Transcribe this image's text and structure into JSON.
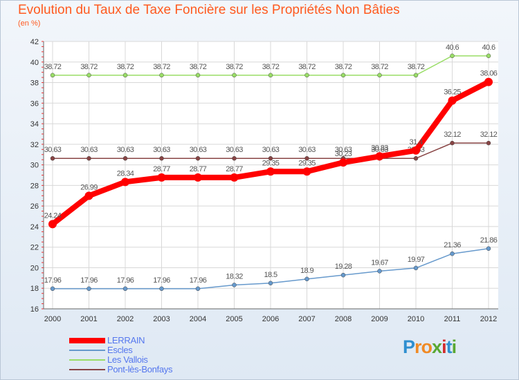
{
  "title": "Evolution du Taux de Taxe Foncière sur les Propriétés Non Bâties",
  "subtitle": "(en %)",
  "logo": {
    "letters": [
      "P",
      "r",
      "o",
      "x",
      "i",
      "t",
      "i"
    ],
    "colors": [
      "#2f8fd0",
      "#f08a24",
      "#f08a24",
      "#5aa832",
      "#d22d2d",
      "#2f8fd0",
      "#5aa832"
    ]
  },
  "chart_data": {
    "type": "line",
    "title": "Evolution du Taux de Taxe Foncière sur les Propriétés Non Bâties",
    "ylabel": "(en %)",
    "x": [
      "2000",
      "2001",
      "2002",
      "2003",
      "2004",
      "2005",
      "2006",
      "2007",
      "2008",
      "2009",
      "2010",
      "2011",
      "2012"
    ],
    "ylim": [
      16,
      42
    ],
    "yticks": [
      16,
      18,
      20,
      22,
      24,
      26,
      28,
      30,
      32,
      34,
      36,
      38,
      40,
      42
    ],
    "series": [
      {
        "name": "LERRAIN",
        "color": "#ff0000",
        "values": [
          24.24,
          26.99,
          28.34,
          28.77,
          28.77,
          28.77,
          29.35,
          29.35,
          30.23,
          30.83,
          31.4,
          36.25,
          38.06
        ],
        "labels": [
          "24.24",
          "26.99",
          "28.34",
          "28.77",
          "28.77",
          "28.77",
          "29.35",
          "29.35",
          "30.23",
          "30.83",
          "31.4",
          "36.25",
          "38.06"
        ]
      },
      {
        "name": "Escles",
        "color": "#6699cc",
        "values": [
          17.96,
          17.96,
          17.96,
          17.96,
          17.96,
          18.32,
          18.5,
          18.9,
          19.28,
          19.67,
          19.97,
          21.36,
          21.86
        ],
        "labels": [
          "17.96",
          "17.96",
          "17.96",
          "17.96",
          "17.96",
          "18.32",
          "18.5",
          "18.9",
          "19.28",
          "19.67",
          "19.97",
          "21.36",
          "21.86"
        ]
      },
      {
        "name": "Les Vallois",
        "color": "#99dd66",
        "values": [
          38.72,
          38.72,
          38.72,
          38.72,
          38.72,
          38.72,
          38.72,
          38.72,
          38.72,
          38.72,
          38.72,
          40.6,
          40.6
        ],
        "labels": [
          "38.72",
          "38.72",
          "38.72",
          "38.72",
          "38.72",
          "38.72",
          "38.72",
          "38.72",
          "38.72",
          "38.72",
          "38.72",
          "40.6",
          "40.6"
        ]
      },
      {
        "name": "Pont-lès-Bonfays",
        "color": "#884444",
        "values": [
          30.63,
          30.63,
          30.63,
          30.63,
          30.63,
          30.63,
          30.63,
          30.63,
          30.63,
          30.63,
          30.63,
          32.12,
          32.12
        ],
        "labels": [
          "30.63",
          "30.63",
          "30.63",
          "30.63",
          "30.63",
          "30.63",
          "30.63",
          "30.63",
          "30.63",
          "30.63",
          "30.63",
          "32.12",
          "32.12"
        ]
      }
    ]
  }
}
